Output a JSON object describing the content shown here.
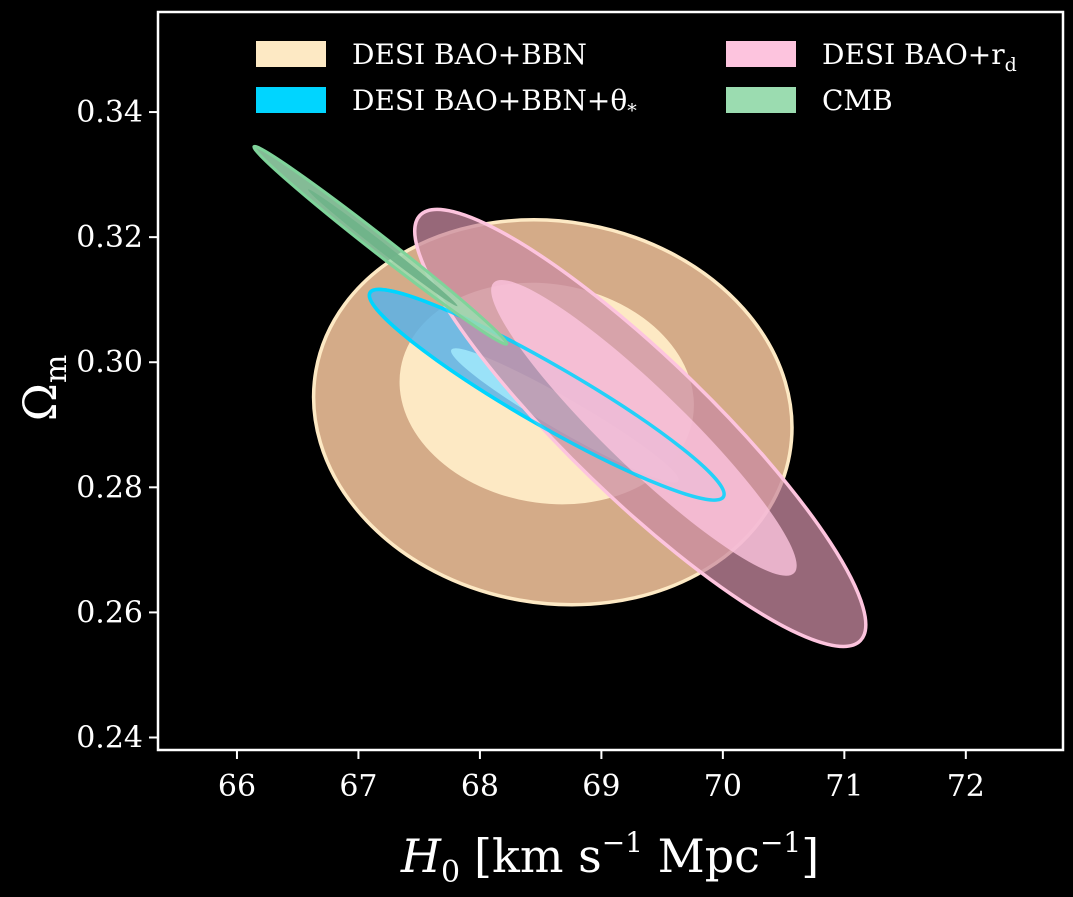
{
  "chart_data": {
    "type": "contour",
    "xlabel_main": "H",
    "xlabel_sub": "0",
    "xlabel_units": "[km s",
    "xlabel_exp1": "−1",
    "xlabel_units2": " Mpc",
    "xlabel_exp2": "−1",
    "xlabel_close": "]",
    "ylabel_main": "Ω",
    "ylabel_sub": "m",
    "xlim": [
      65.35,
      72.8
    ],
    "ylim": [
      0.238,
      0.356
    ],
    "xticks": [
      "66",
      "67",
      "68",
      "69",
      "70",
      "71",
      "72"
    ],
    "yticks": [
      "0.24",
      "0.26",
      "0.28",
      "0.30",
      "0.32",
      "0.34"
    ],
    "xtick_values": [
      66,
      67,
      68,
      69,
      70,
      71,
      72
    ],
    "ytick_values": [
      0.24,
      0.26,
      0.28,
      0.3,
      0.32,
      0.34
    ],
    "legend_position": "top",
    "legend": [
      {
        "label": "DESI BAO+BBN",
        "color": "#fde9c4"
      },
      {
        "label": "DESI BAO+r",
        "sub": "d",
        "color": "#fdc4de"
      },
      {
        "label": "DESI BAO+BBN+θ",
        "sub": "*",
        "color": "#00d5ff"
      },
      {
        "label": "CMB",
        "color": "#9bdcb0"
      }
    ],
    "series": [
      {
        "name": "DESI BAO+BBN",
        "color": "#fde9c4",
        "outer": {
          "cx": 68.6,
          "cy": 0.292,
          "rx": 1.98,
          "ry": 0.0305,
          "angle": 10,
          "fill": "#d4ab88"
        },
        "inner": {
          "cx": 68.55,
          "cy": 0.295,
          "rx": 1.22,
          "ry": 0.0175,
          "angle": 10,
          "fill": "#fde9c4"
        }
      },
      {
        "name": "DESI BAO+r_d",
        "color": "#fdc4de",
        "outer": {
          "cx": 69.32,
          "cy": 0.2895,
          "rx": 2.52,
          "ry": 0.0112,
          "angle": 44,
          "fill": "#c98ba1"
        },
        "inner": {
          "cx": 69.35,
          "cy": 0.2895,
          "rx": 1.72,
          "ry": 0.0063,
          "angle": 44,
          "fill": "#fdc4de"
        }
      },
      {
        "name": "DESI BAO+BBN+θ*",
        "color": "#00d5ff",
        "outer": {
          "cx": 68.55,
          "cy": 0.2948,
          "rx": 1.68,
          "ry": 0.0048,
          "angle": 30,
          "fill": "#5bb2e8"
        },
        "inner": {
          "cx": 68.7,
          "cy": 0.2915,
          "rx": 1.08,
          "ry": 0.0026,
          "angle": 30,
          "fill": "#9fe7fb"
        }
      },
      {
        "name": "CMB",
        "color": "#9bdcb0",
        "outer": {
          "cx": 67.18,
          "cy": 0.3187,
          "rx": 1.32,
          "ry": 0.0014,
          "angle": 38,
          "fill": "#9bdcb0"
        },
        "inner": {
          "cx": 67.2,
          "cy": 0.3183,
          "rx": 0.78,
          "ry": 0.0007,
          "angle": 38,
          "fill": "#6fb389"
        }
      }
    ]
  }
}
